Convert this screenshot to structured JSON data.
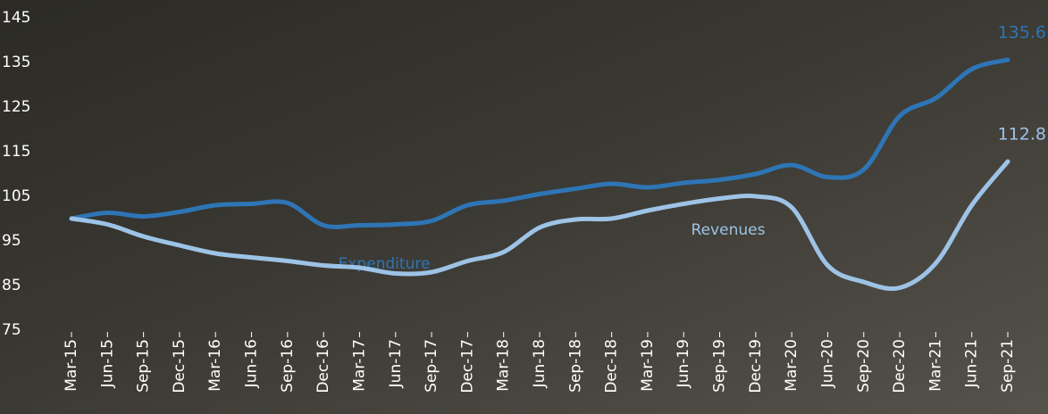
{
  "chart_data": {
    "type": "line",
    "categories": [
      "Mar-15",
      "Jun-15",
      "Sep-15",
      "Dec-15",
      "Mar-16",
      "Jun-16",
      "Sep-16",
      "Dec-16",
      "Mar-17",
      "Jun-17",
      "Sep-17",
      "Dec-17",
      "Mar-18",
      "Jun-18",
      "Sep-18",
      "Dec-18",
      "Mar-19",
      "Jun-19",
      "Sep-19",
      "Dec-19",
      "Mar-20",
      "Jun-20",
      "Sep-20",
      "Dec-20",
      "Mar-21",
      "Jun-21",
      "Sep-21"
    ],
    "series": [
      {
        "name": "Expenditure",
        "color": "#2e75b6",
        "values": [
          100,
          101.3,
          100.5,
          101.5,
          103,
          103.3,
          103.5,
          98.5,
          98.5,
          98.7,
          99.5,
          103,
          104,
          105.5,
          106.7,
          107.8,
          107,
          108,
          108.7,
          110,
          112,
          109.3,
          111,
          123,
          127,
          133.5,
          135.6
        ]
      },
      {
        "name": "Revenues",
        "color": "#9dc3e6",
        "values": [
          100,
          98.7,
          96,
          94,
          92.2,
          91.3,
          90.5,
          89.5,
          89,
          87.7,
          88,
          90.5,
          92.5,
          98,
          99.8,
          100,
          101.8,
          103.3,
          104.5,
          105,
          102.5,
          89.5,
          85.8,
          84.5,
          90,
          103,
          112.8
        ]
      }
    ],
    "ylim": [
      75,
      145
    ],
    "yticks": [
      75,
      85,
      95,
      105,
      115,
      125,
      135,
      145
    ]
  }
}
